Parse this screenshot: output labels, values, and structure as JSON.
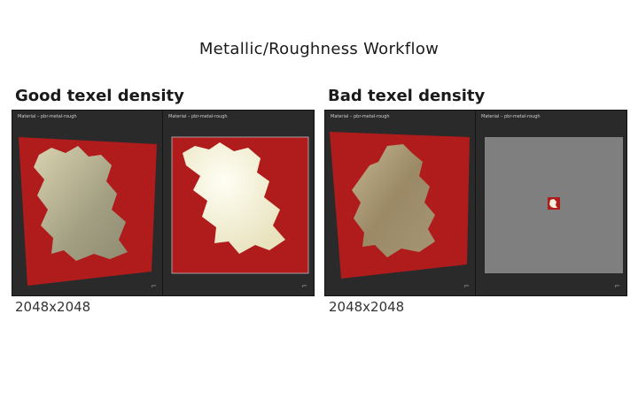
{
  "title": "Metallic/Roughness Workflow",
  "panels": [
    {
      "heading": "Good texel density",
      "caption": "2048x2048",
      "viewport_labels": [
        "Material – pbr-metal-rough",
        "Material – pbr-metal-rough"
      ]
    },
    {
      "heading": "Bad texel density",
      "caption": "2048x2048",
      "viewport_labels": [
        "Material – pbr-metal-rough",
        "Material – pbr-metal-rough"
      ]
    }
  ],
  "colors": {
    "red": "#b01c1c",
    "gold": "#c8c39a",
    "grey": "#7f7f7f"
  },
  "icons": {
    "corner": "orientation-gizmo-icon"
  }
}
